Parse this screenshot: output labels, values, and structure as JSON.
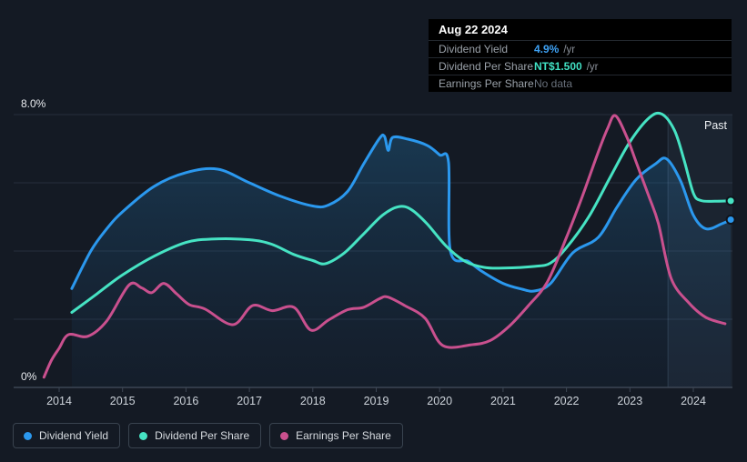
{
  "tooltip": {
    "date": "Aug 22 2024",
    "rows": [
      {
        "label": "Dividend Yield",
        "value": "4.9%",
        "unit": "/yr",
        "color": "#3EA2F5",
        "muted": false
      },
      {
        "label": "Dividend Per Share",
        "value": "NT$1.500",
        "unit": "/yr",
        "color": "#41E1C4",
        "muted": false
      },
      {
        "label": "Earnings Per Share",
        "value": "No data",
        "unit": "",
        "color": "#68707B",
        "muted": true
      }
    ]
  },
  "chart": {
    "past_label": "Past",
    "y_axis_labels": [
      {
        "value": 8,
        "label": "8.0%"
      },
      {
        "value": 0,
        "label": "0%"
      }
    ]
  },
  "chart_data": {
    "type": "line",
    "x_ticks": [
      2014,
      2015,
      2016,
      2017,
      2018,
      2019,
      2020,
      2021,
      2022,
      2023,
      2024
    ],
    "xlim": [
      2013.55,
      2024.8
    ],
    "ylim": [
      0,
      8
    ],
    "y_unit": "percent",
    "y_gridlines": [
      2,
      4,
      6,
      8
    ],
    "past_region_start_year": 2023.6,
    "series": [
      {
        "name": "Dividend Yield",
        "color": "#2B98EE",
        "area_fill": true,
        "end_dot": true,
        "points": [
          [
            2014.2,
            2.9
          ],
          [
            2014.5,
            4.0
          ],
          [
            2014.75,
            4.65
          ],
          [
            2015.0,
            5.15
          ],
          [
            2015.5,
            5.9
          ],
          [
            2016.0,
            6.3
          ],
          [
            2016.5,
            6.4
          ],
          [
            2017.0,
            6.0
          ],
          [
            2017.5,
            5.6
          ],
          [
            2018.0,
            5.32
          ],
          [
            2018.25,
            5.35
          ],
          [
            2018.55,
            5.75
          ],
          [
            2018.8,
            6.55
          ],
          [
            2019.05,
            7.3
          ],
          [
            2019.13,
            7.36
          ],
          [
            2019.19,
            6.95
          ],
          [
            2019.26,
            7.33
          ],
          [
            2019.5,
            7.28
          ],
          [
            2019.8,
            7.1
          ],
          [
            2020.0,
            6.82
          ],
          [
            2020.14,
            6.6
          ],
          [
            2020.17,
            4.0
          ],
          [
            2020.45,
            3.7
          ],
          [
            2020.67,
            3.4
          ],
          [
            2021.0,
            3.05
          ],
          [
            2021.3,
            2.88
          ],
          [
            2021.5,
            2.83
          ],
          [
            2021.75,
            3.05
          ],
          [
            2022.1,
            3.95
          ],
          [
            2022.5,
            4.4
          ],
          [
            2022.8,
            5.3
          ],
          [
            2023.1,
            6.1
          ],
          [
            2023.4,
            6.55
          ],
          [
            2023.58,
            6.7
          ],
          [
            2023.8,
            6.05
          ],
          [
            2024.0,
            5.05
          ],
          [
            2024.2,
            4.65
          ],
          [
            2024.45,
            4.8
          ],
          [
            2024.59,
            4.92
          ]
        ]
      },
      {
        "name": "Dividend Per Share",
        "color": "#46E3C3",
        "area_fill": false,
        "end_dot": true,
        "points": [
          [
            2014.2,
            2.2
          ],
          [
            2014.6,
            2.75
          ],
          [
            2015.0,
            3.3
          ],
          [
            2015.5,
            3.85
          ],
          [
            2016.0,
            4.25
          ],
          [
            2016.4,
            4.35
          ],
          [
            2017.0,
            4.33
          ],
          [
            2017.35,
            4.2
          ],
          [
            2017.7,
            3.9
          ],
          [
            2018.0,
            3.72
          ],
          [
            2018.2,
            3.63
          ],
          [
            2018.5,
            3.95
          ],
          [
            2018.8,
            4.5
          ],
          [
            2019.1,
            5.05
          ],
          [
            2019.35,
            5.3
          ],
          [
            2019.55,
            5.22
          ],
          [
            2019.8,
            4.8
          ],
          [
            2020.1,
            4.15
          ],
          [
            2020.4,
            3.7
          ],
          [
            2020.7,
            3.52
          ],
          [
            2021.0,
            3.5
          ],
          [
            2021.5,
            3.55
          ],
          [
            2021.75,
            3.65
          ],
          [
            2022.0,
            4.1
          ],
          [
            2022.35,
            5.0
          ],
          [
            2022.7,
            6.2
          ],
          [
            2023.0,
            7.2
          ],
          [
            2023.3,
            7.9
          ],
          [
            2023.5,
            8.02
          ],
          [
            2023.7,
            7.55
          ],
          [
            2023.85,
            6.7
          ],
          [
            2024.0,
            5.7
          ],
          [
            2024.12,
            5.48
          ],
          [
            2024.35,
            5.46
          ],
          [
            2024.59,
            5.47
          ]
        ]
      },
      {
        "name": "Earnings Per Share",
        "color": "#C9508E",
        "area_fill": false,
        "end_dot": false,
        "points": [
          [
            2013.76,
            0.3
          ],
          [
            2013.88,
            0.8
          ],
          [
            2014.0,
            1.15
          ],
          [
            2014.15,
            1.55
          ],
          [
            2014.45,
            1.5
          ],
          [
            2014.75,
            1.95
          ],
          [
            2015.1,
            3.0
          ],
          [
            2015.3,
            2.92
          ],
          [
            2015.46,
            2.78
          ],
          [
            2015.65,
            3.05
          ],
          [
            2015.85,
            2.75
          ],
          [
            2016.05,
            2.43
          ],
          [
            2016.3,
            2.3
          ],
          [
            2016.74,
            1.84
          ],
          [
            2017.05,
            2.4
          ],
          [
            2017.36,
            2.25
          ],
          [
            2017.7,
            2.35
          ],
          [
            2017.97,
            1.68
          ],
          [
            2018.25,
            1.98
          ],
          [
            2018.55,
            2.28
          ],
          [
            2018.8,
            2.35
          ],
          [
            2019.05,
            2.6
          ],
          [
            2019.18,
            2.65
          ],
          [
            2019.45,
            2.4
          ],
          [
            2019.77,
            2.03
          ],
          [
            2020.05,
            1.23
          ],
          [
            2020.5,
            1.25
          ],
          [
            2020.8,
            1.38
          ],
          [
            2021.1,
            1.8
          ],
          [
            2021.4,
            2.4
          ],
          [
            2021.7,
            3.1
          ],
          [
            2022.0,
            4.4
          ],
          [
            2022.25,
            5.6
          ],
          [
            2022.5,
            6.9
          ],
          [
            2022.65,
            7.6
          ],
          [
            2022.77,
            7.97
          ],
          [
            2022.95,
            7.35
          ],
          [
            2023.1,
            6.6
          ],
          [
            2023.3,
            5.6
          ],
          [
            2023.45,
            4.8
          ],
          [
            2023.65,
            3.2
          ],
          [
            2023.93,
            2.48
          ],
          [
            2024.2,
            2.05
          ],
          [
            2024.5,
            1.87
          ]
        ]
      }
    ]
  },
  "legend": {
    "items": [
      {
        "label": "Dividend Yield",
        "color": "#2B98EE"
      },
      {
        "label": "Dividend Per Share",
        "color": "#46E3C3"
      },
      {
        "label": "Earnings Per Share",
        "color": "#C9508E"
      }
    ]
  },
  "colors": {
    "background": "#141A24",
    "grid": "#262F3D",
    "axis": "#3C4654",
    "tick_label": "#CDD3DA",
    "y_label": "#E8EBEF",
    "past_label": "#EDF0F3"
  }
}
